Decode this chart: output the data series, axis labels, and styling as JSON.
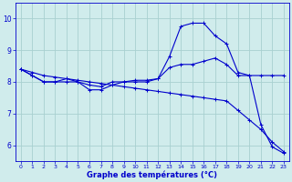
{
  "title": "Graphe des températures (°C)",
  "bg_color": "#d0ecec",
  "grid_color": "#a8d0d0",
  "line_color": "#0000cc",
  "xlim": [
    -0.5,
    23.5
  ],
  "ylim": [
    5.5,
    10.5
  ],
  "yticks": [
    6,
    7,
    8,
    9,
    10
  ],
  "xticks": [
    0,
    1,
    2,
    3,
    4,
    5,
    6,
    7,
    8,
    9,
    10,
    11,
    12,
    13,
    14,
    15,
    16,
    17,
    18,
    19,
    20,
    21,
    22,
    23
  ],
  "series1_x": [
    0,
    1,
    2,
    3,
    4,
    5,
    6,
    7,
    8,
    9,
    10,
    11,
    12,
    13,
    14,
    15,
    16,
    17,
    18,
    19,
    20,
    21,
    22,
    23
  ],
  "series1_y": [
    8.4,
    8.2,
    8.0,
    8.0,
    8.1,
    8.0,
    7.9,
    7.85,
    8.0,
    8.0,
    8.05,
    8.05,
    8.1,
    8.45,
    8.55,
    8.55,
    8.65,
    8.75,
    8.55,
    8.2,
    8.2,
    8.2,
    8.2,
    8.2
  ],
  "series2_x": [
    0,
    1,
    2,
    3,
    4,
    5,
    6,
    7,
    8,
    9,
    10,
    11,
    12,
    13,
    14,
    15,
    16,
    17,
    18,
    19,
    20,
    21,
    22,
    23
  ],
  "series2_y": [
    8.4,
    8.2,
    8.0,
    8.0,
    8.0,
    8.0,
    7.75,
    7.75,
    7.9,
    8.0,
    8.0,
    8.0,
    8.1,
    8.8,
    9.75,
    9.85,
    9.85,
    9.45,
    9.2,
    8.3,
    8.2,
    6.65,
    5.95,
    5.75
  ],
  "series3_x": [
    0,
    1,
    2,
    3,
    4,
    5,
    6,
    7,
    8,
    9,
    10,
    11,
    12,
    13,
    14,
    15,
    16,
    17,
    18,
    19,
    20,
    21,
    22,
    23
  ],
  "series3_y": [
    8.4,
    8.3,
    8.2,
    8.15,
    8.1,
    8.05,
    8.0,
    7.95,
    7.9,
    7.85,
    7.8,
    7.75,
    7.7,
    7.65,
    7.6,
    7.55,
    7.5,
    7.45,
    7.4,
    7.1,
    6.8,
    6.5,
    6.1,
    5.8
  ]
}
